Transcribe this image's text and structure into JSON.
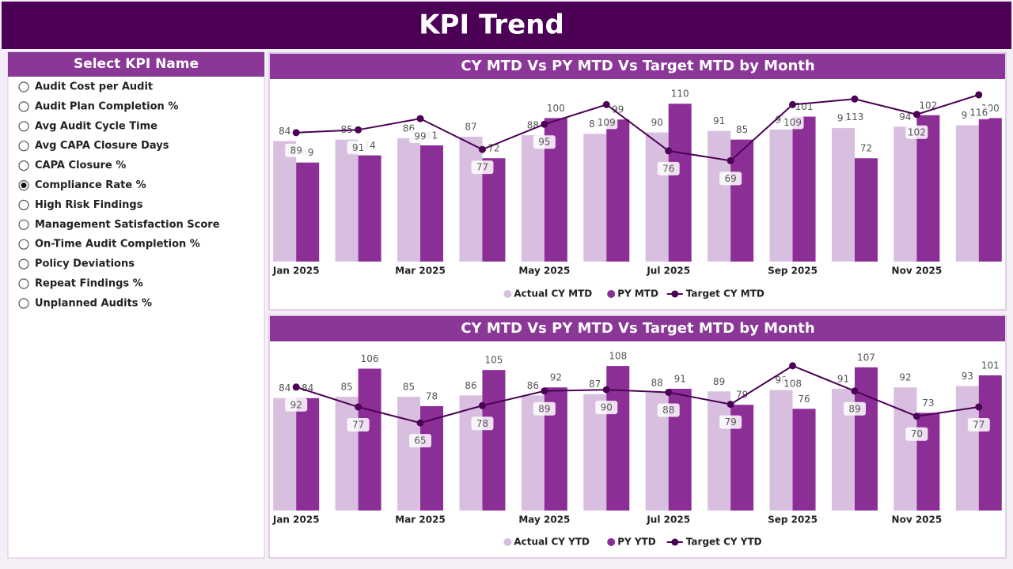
{
  "header": {
    "title": "KPI Trend"
  },
  "slicer": {
    "title": "Select KPI Name",
    "selected": 5,
    "items": [
      "Audit Cost per Audit",
      "Audit Plan Completion %",
      "Avg Audit Cycle Time",
      "Avg CAPA Closure Days",
      "CAPA Closure %",
      "Compliance Rate %",
      "High Risk Findings",
      "Management Satisfaction Score",
      "On-Time Audit Completion %",
      "Policy Deviations",
      "Repeat Findings %",
      "Unplanned Audits %"
    ]
  },
  "chart_data": [
    {
      "type": "combo",
      "title": "CY MTD Vs PY MTD Vs Target MTD by Month",
      "categories": [
        "Jan 2025",
        null,
        "Mar 2025",
        null,
        "May 2025",
        null,
        "Jul 2025",
        null,
        "Sep 2025",
        null,
        "Nov 2025",
        null
      ],
      "series": [
        {
          "name": "Actual CY MTD",
          "color": "#d8bfe0",
          "type": "bar",
          "values": [
            84,
            85,
            86,
            87,
            88,
            89,
            90,
            91,
            92,
            93,
            94,
            95
          ]
        },
        {
          "name": "PY MTD",
          "color": "#8b2f97",
          "type": "bar",
          "values": [
            69,
            74,
            81,
            72,
            100,
            99,
            110,
            85,
            101,
            72,
            102,
            100
          ]
        },
        {
          "name": "Target CY MTD",
          "color": "#4b0055",
          "type": "line",
          "axis": "y2",
          "values": [
            89,
            91,
            99,
            77,
            95,
            109,
            76,
            69,
            109,
            113,
            102,
            116
          ]
        }
      ],
      "ylim": [
        0,
        125
      ],
      "y2lim": [
        -3,
        125
      ],
      "legend": "bottom"
    },
    {
      "type": "combo",
      "title": "CY MTD Vs PY MTD Vs Target MTD by Month",
      "categories": [
        "Jan 2025",
        null,
        "Mar 2025",
        null,
        "May 2025",
        null,
        "Jul 2025",
        null,
        "Sep 2025",
        null,
        "Nov 2025",
        null
      ],
      "series": [
        {
          "name": "Actual CY YTD",
          "color": "#d8bfe0",
          "type": "bar",
          "values": [
            84,
            85,
            85,
            86,
            86,
            87,
            88,
            89,
            90,
            91,
            92,
            93
          ]
        },
        {
          "name": "PY YTD",
          "color": "#8b2f97",
          "type": "bar",
          "values": [
            84,
            106,
            78,
            105,
            92,
            108,
            91,
            79,
            76,
            107,
            73,
            101
          ]
        },
        {
          "name": "Target CY YTD",
          "color": "#4b0055",
          "type": "line",
          "axis": "y2",
          "values": [
            92,
            77,
            65,
            78,
            89,
            90,
            88,
            79,
            108,
            89,
            70,
            77
          ]
        }
      ],
      "ylim": [
        0,
        124
      ],
      "y2lim": [
        -1,
        124
      ],
      "legend": "bottom"
    }
  ]
}
